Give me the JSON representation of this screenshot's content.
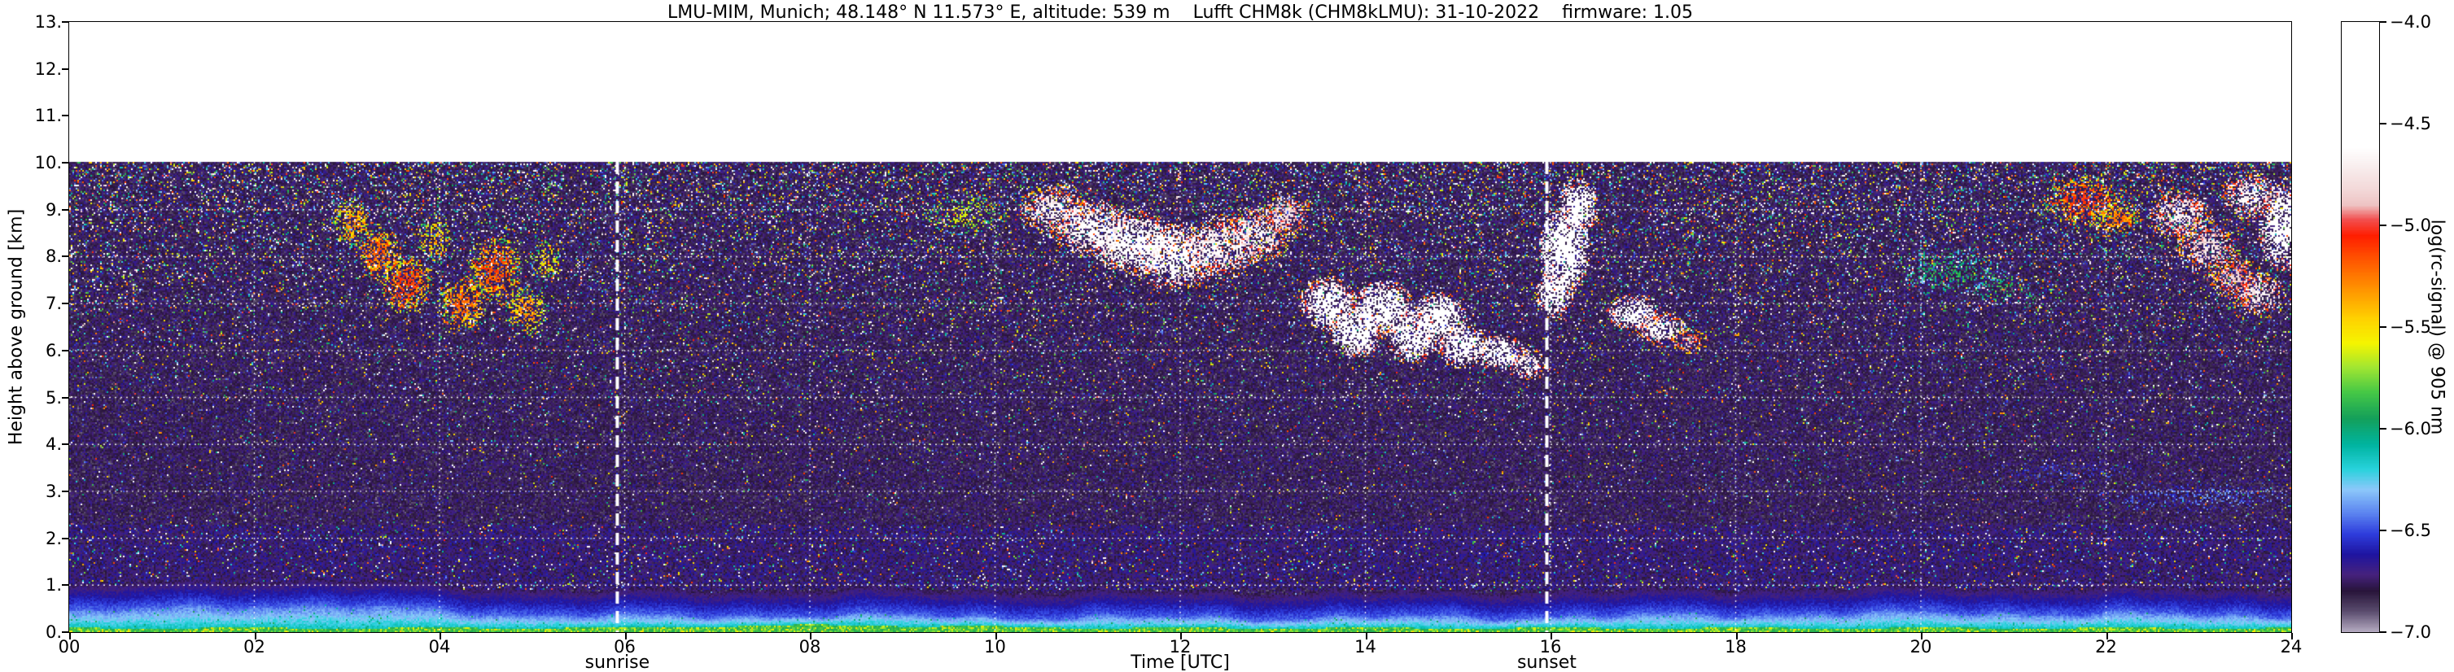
{
  "chart_data": {
    "type": "heatmap",
    "title": "LMU-MIM, Munich; 48.148° N 11.573° E, altitude: 539 m    Lufft CHM8k (CHM8kLMU): 31-10-2022    firmware: 1.05",
    "xlabel": "Time [UTC]",
    "ylabel": "Height above ground [km]",
    "colorbar_label": "log(rc-signal) @ 905 nm",
    "x_range": [
      0,
      24
    ],
    "y_range": [
      0,
      13
    ],
    "data_top_km": 10.02,
    "x_ticks": [
      0,
      2,
      4,
      6,
      8,
      10,
      12,
      14,
      16,
      18,
      20,
      22,
      24
    ],
    "x_tick_labels": [
      "00",
      "02",
      "04",
      "06",
      "08",
      "10",
      "12",
      "14",
      "16",
      "18",
      "20",
      "22",
      "24"
    ],
    "y_ticks": [
      0,
      1,
      2,
      3,
      4,
      5,
      6,
      7,
      8,
      9,
      10,
      11,
      12,
      13
    ],
    "y_tick_labels": [
      "0.",
      "1.",
      "2.",
      "3.",
      "4.",
      "5.",
      "6.",
      "7.",
      "8.",
      "9.",
      "10.",
      "11.",
      "12.",
      "13."
    ],
    "colorbar_range": [
      -4.0,
      -7.0
    ],
    "colorbar_ticks": [
      -4.0,
      -4.5,
      -5.0,
      -5.5,
      -6.0,
      -6.5,
      -7.0
    ],
    "colorbar_tick_labels": [
      "−4.0",
      "−4.5",
      "−5.0",
      "−5.5",
      "−6.0",
      "−6.5",
      "−7.0"
    ],
    "grid": {
      "h_lines_km": [
        1,
        2,
        3,
        4,
        5,
        6,
        7,
        8,
        9
      ],
      "v_lines_utc": [
        2,
        4,
        6,
        8,
        10,
        12,
        14,
        16,
        18,
        20,
        22
      ],
      "color": "#ffffff",
      "style": "dotted"
    },
    "sun_events": [
      {
        "label": "sunrise",
        "time_utc": 5.92
      },
      {
        "label": "sunset",
        "time_utc": 15.96
      }
    ],
    "colormap": [
      [
        -4.0,
        "#ffffff"
      ],
      [
        -4.62,
        "#ffffff"
      ],
      [
        -4.72,
        "#f8ecec"
      ],
      [
        -4.82,
        "#f3d9d9"
      ],
      [
        -4.9,
        "#eec4c4"
      ],
      [
        -4.97,
        "#f25050"
      ],
      [
        -5.05,
        "#ff1e00"
      ],
      [
        -5.18,
        "#ff5a00"
      ],
      [
        -5.32,
        "#ff9600"
      ],
      [
        -5.46,
        "#ffd200"
      ],
      [
        -5.58,
        "#f5f500"
      ],
      [
        -5.7,
        "#a0e632"
      ],
      [
        -5.82,
        "#46c846"
      ],
      [
        -5.95,
        "#14a05a"
      ],
      [
        -6.08,
        "#00b4a0"
      ],
      [
        -6.2,
        "#28d2dc"
      ],
      [
        -6.3,
        "#8cc8fa"
      ],
      [
        -6.42,
        "#5a82f0"
      ],
      [
        -6.52,
        "#2e3cdc"
      ],
      [
        -6.62,
        "#1e14a0"
      ],
      [
        -6.72,
        "#46227d"
      ],
      [
        -6.8,
        "#28143a"
      ],
      [
        -6.9,
        "#5a4c6e"
      ],
      [
        -7.0,
        "#b4aac0"
      ]
    ],
    "noise": {
      "base": -6.78,
      "sigma": 0.065,
      "hot_base": 0.015,
      "hot_gain": 0.16,
      "hot_exp": 2.2,
      "hot_vmin": -6.55,
      "hot_span": 2.45,
      "haze_band": [
        0.9,
        2.3
      ],
      "haze_base": -6.73,
      "haze_hot_extra": 0.03
    },
    "boundary_layer": {
      "green_top_km": 0.07,
      "green_v": -5.92,
      "cyan_base_km": 0.3,
      "cyan_bumps": [
        [
          2.2,
          2.4,
          0.26
        ],
        [
          20.5,
          4.0,
          0.1
        ],
        [
          8.2,
          1.9,
          0.05
        ]
      ],
      "cyan_v": [
        -6.14,
        -6.44
      ],
      "blue_depth_km": 0.55,
      "blue_v": [
        -6.46,
        -6.76
      ]
    },
    "clouds_format": "[time_utc, height_km, radius_utc, radius_km, peak_log_signal, density]",
    "clouds": [
      [
        3.05,
        8.7,
        0.22,
        0.55,
        -5.2,
        0.55
      ],
      [
        3.35,
        8.05,
        0.25,
        0.6,
        -5.1,
        0.55
      ],
      [
        3.65,
        7.4,
        0.28,
        0.65,
        -5.0,
        0.6
      ],
      [
        3.95,
        8.35,
        0.2,
        0.5,
        -5.3,
        0.5
      ],
      [
        4.25,
        7.0,
        0.28,
        0.6,
        -5.1,
        0.55
      ],
      [
        4.6,
        7.7,
        0.3,
        0.75,
        -5.05,
        0.55
      ],
      [
        4.95,
        6.85,
        0.25,
        0.55,
        -5.2,
        0.5
      ],
      [
        5.15,
        7.9,
        0.18,
        0.45,
        -5.4,
        0.45
      ],
      [
        9.7,
        8.9,
        0.5,
        0.45,
        -5.5,
        0.3
      ],
      [
        10.65,
        9.0,
        0.4,
        0.55,
        -4.55,
        0.6
      ],
      [
        11.05,
        8.6,
        0.45,
        0.6,
        -4.4,
        0.65
      ],
      [
        11.5,
        8.3,
        0.5,
        0.7,
        -4.35,
        0.7
      ],
      [
        11.95,
        8.0,
        0.5,
        0.75,
        -4.4,
        0.65
      ],
      [
        12.45,
        8.2,
        0.45,
        0.7,
        -4.5,
        0.6
      ],
      [
        12.85,
        8.5,
        0.4,
        0.6,
        -4.55,
        0.55
      ],
      [
        13.15,
        8.9,
        0.3,
        0.5,
        -4.7,
        0.5
      ],
      [
        13.6,
        7.0,
        0.33,
        0.6,
        -4.3,
        0.75
      ],
      [
        13.9,
        6.4,
        0.3,
        0.55,
        -4.2,
        0.8
      ],
      [
        14.2,
        6.9,
        0.33,
        0.6,
        -4.2,
        0.8
      ],
      [
        14.5,
        6.3,
        0.3,
        0.6,
        -4.25,
        0.75
      ],
      [
        14.8,
        6.7,
        0.3,
        0.55,
        -4.2,
        0.8
      ],
      [
        15.05,
        6.1,
        0.28,
        0.5,
        -4.3,
        0.75
      ],
      [
        15.45,
        5.95,
        0.28,
        0.4,
        -4.3,
        0.7
      ],
      [
        15.75,
        5.7,
        0.22,
        0.35,
        -4.5,
        0.6
      ],
      [
        16.15,
        8.1,
        0.28,
        0.95,
        -4.1,
        0.85
      ],
      [
        16.3,
        9.05,
        0.22,
        0.65,
        -4.2,
        0.8
      ],
      [
        16.05,
        7.2,
        0.22,
        0.5,
        -4.3,
        0.7
      ],
      [
        16.9,
        6.8,
        0.3,
        0.4,
        -4.3,
        0.7
      ],
      [
        17.2,
        6.45,
        0.28,
        0.38,
        -4.45,
        0.65
      ],
      [
        17.5,
        6.2,
        0.2,
        0.3,
        -4.8,
        0.5
      ],
      [
        20.3,
        7.7,
        0.65,
        0.55,
        -5.8,
        0.25
      ],
      [
        20.9,
        7.3,
        0.4,
        0.4,
        -5.75,
        0.25
      ],
      [
        21.75,
        9.2,
        0.45,
        0.55,
        -5.0,
        0.5
      ],
      [
        22.1,
        8.8,
        0.3,
        0.4,
        -5.15,
        0.45
      ],
      [
        22.8,
        8.9,
        0.35,
        0.6,
        -4.6,
        0.6
      ],
      [
        23.1,
        8.2,
        0.35,
        0.6,
        -4.65,
        0.55
      ],
      [
        23.4,
        7.5,
        0.3,
        0.5,
        -4.75,
        0.5
      ],
      [
        23.65,
        7.2,
        0.28,
        0.5,
        -4.6,
        0.55
      ],
      [
        23.9,
        8.6,
        0.25,
        0.95,
        -4.1,
        0.8
      ],
      [
        23.55,
        9.3,
        0.3,
        0.5,
        -4.5,
        0.6
      ],
      [
        21.5,
        3.4,
        0.9,
        0.3,
        -6.45,
        0.3
      ],
      [
        23.0,
        2.9,
        1.3,
        0.35,
        -6.35,
        0.3
      ]
    ]
  }
}
